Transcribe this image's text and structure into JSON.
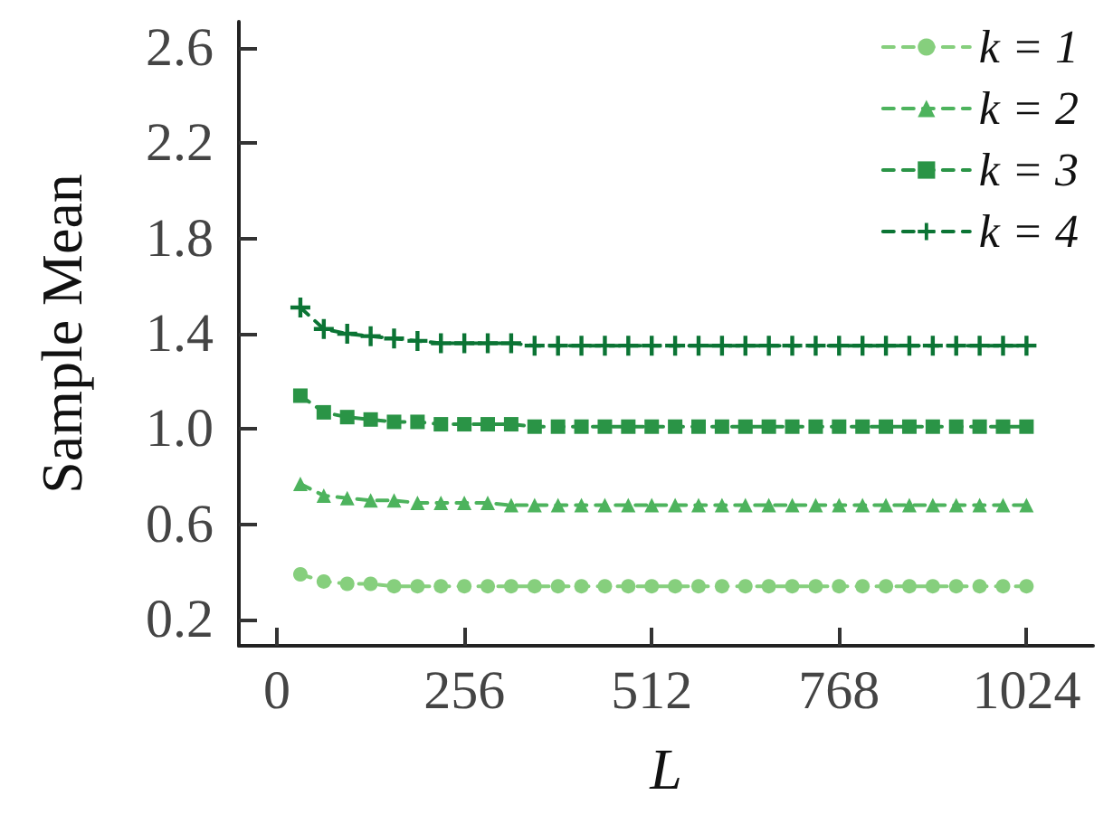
{
  "chart_data": {
    "type": "line",
    "xlabel": "L",
    "ylabel": "Sample Mean",
    "x": [
      32,
      64,
      96,
      128,
      160,
      192,
      224,
      256,
      288,
      320,
      352,
      384,
      416,
      448,
      480,
      512,
      544,
      576,
      608,
      640,
      672,
      704,
      736,
      768,
      800,
      832,
      864,
      896,
      928,
      960,
      992,
      1024
    ],
    "xlim": [
      -52,
      1115
    ],
    "xticks": [
      0,
      256,
      512,
      768,
      1024
    ],
    "ylim": [
      0.09,
      2.71
    ],
    "yticks": [
      0.2,
      0.6,
      {
        "value": 1,
        "label": "1.0"
      },
      1.4,
      1.8,
      2.2,
      2.6
    ],
    "grid": false,
    "legend": "top right",
    "line_style": "dashed",
    "series": [
      {
        "name": "k = 1",
        "color": "#86cf7d",
        "marker": "circle",
        "values": [
          0.39,
          0.36,
          0.35,
          0.35,
          0.34,
          0.34,
          0.34,
          0.34,
          0.34,
          0.34,
          0.34,
          0.34,
          0.34,
          0.34,
          0.34,
          0.34,
          0.34,
          0.34,
          0.34,
          0.34,
          0.34,
          0.34,
          0.34,
          0.34,
          0.34,
          0.34,
          0.34,
          0.34,
          0.34,
          0.34,
          0.34,
          0.34
        ]
      },
      {
        "name": "k = 2",
        "color": "#4db35d",
        "marker": "triangle",
        "values": [
          0.77,
          0.72,
          0.71,
          0.7,
          0.7,
          0.69,
          0.69,
          0.69,
          0.69,
          0.68,
          0.68,
          0.68,
          0.68,
          0.68,
          0.68,
          0.68,
          0.68,
          0.68,
          0.68,
          0.68,
          0.68,
          0.68,
          0.68,
          0.68,
          0.68,
          0.68,
          0.68,
          0.68,
          0.68,
          0.68,
          0.68,
          0.68
        ]
      },
      {
        "name": "k = 3",
        "color": "#2a9446",
        "marker": "square",
        "values": [
          1.14,
          1.07,
          1.05,
          1.04,
          1.03,
          1.03,
          1.02,
          1.02,
          1.02,
          1.02,
          1.01,
          1.01,
          1.01,
          1.01,
          1.01,
          1.01,
          1.01,
          1.01,
          1.01,
          1.01,
          1.01,
          1.01,
          1.01,
          1.01,
          1.01,
          1.01,
          1.01,
          1.01,
          1.01,
          1.01,
          1.01,
          1.01
        ]
      },
      {
        "name": "k = 4",
        "color": "#0b7434",
        "marker": "cross",
        "values": [
          1.51,
          1.42,
          1.4,
          1.39,
          1.38,
          1.37,
          1.36,
          1.36,
          1.36,
          1.36,
          1.35,
          1.35,
          1.35,
          1.35,
          1.35,
          1.35,
          1.35,
          1.35,
          1.35,
          1.35,
          1.35,
          1.35,
          1.35,
          1.35,
          1.35,
          1.35,
          1.35,
          1.35,
          1.35,
          1.35,
          1.35,
          1.35
        ]
      }
    ]
  }
}
